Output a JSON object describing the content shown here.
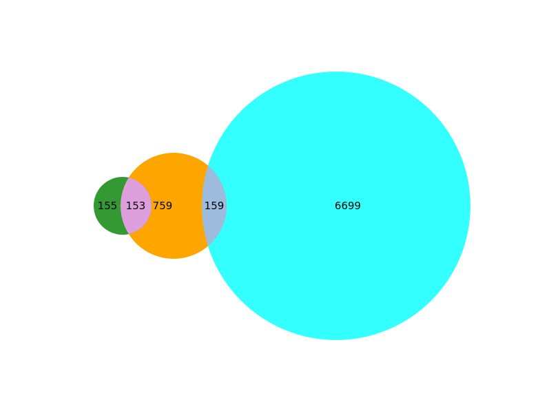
{
  "diagram": {
    "type": "venn",
    "sets": [
      {
        "id": "green",
        "color": "#008000"
      },
      {
        "id": "orange",
        "color": "#FFA500"
      },
      {
        "id": "cyan",
        "color": "#00FFFF"
      }
    ],
    "regions": {
      "green_only": "155",
      "green_orange": "153",
      "orange_only": "759",
      "orange_cyan": "159",
      "cyan_only": "6699"
    },
    "overlap_colors": {
      "green_orange": "#DDA0DD",
      "orange_cyan": "#9DBBDD"
    }
  }
}
